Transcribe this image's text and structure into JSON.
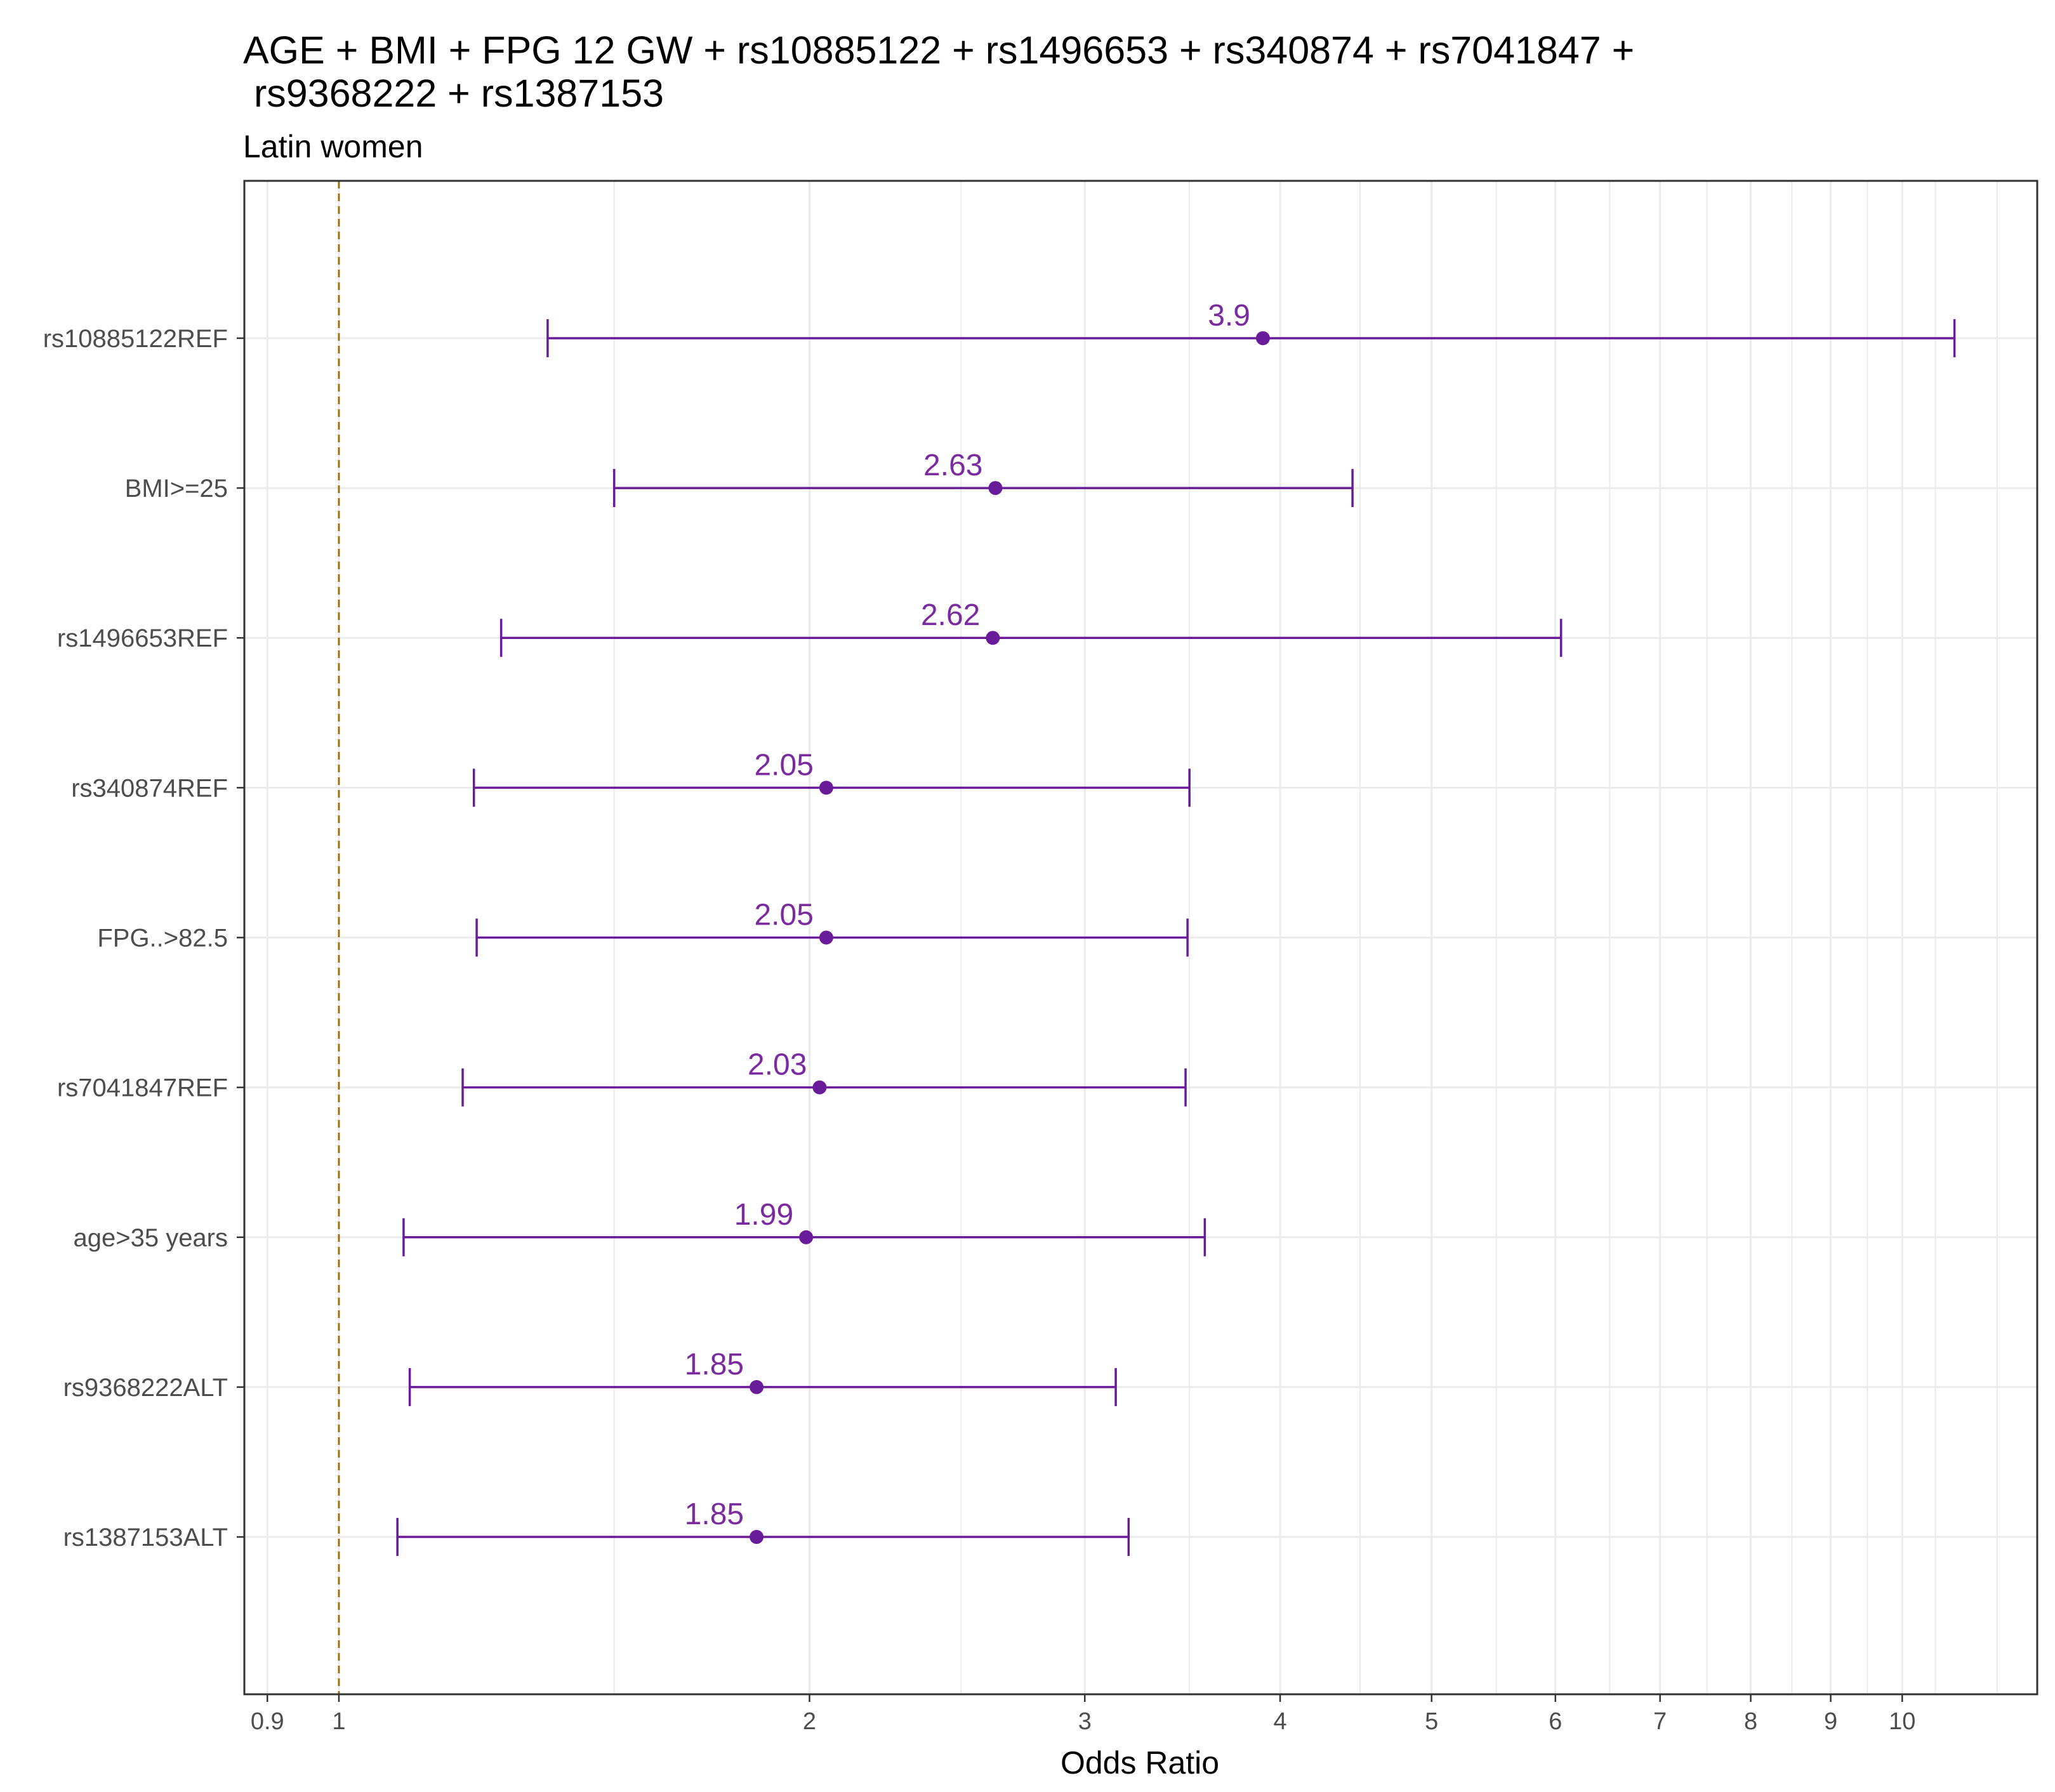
{
  "chart_data": {
    "type": "forest",
    "title_lines": [
      "AGE + BMI + FPG 12 GW + rs10885122 + rs1496653 + rs340874 + rs7041847 +",
      " rs9368222 + rs1387153"
    ],
    "subtitle": "Latin women",
    "xlabel": "Odds Ratio",
    "x_scale": "log",
    "xlim": [
      0.87,
      12.2
    ],
    "reference_line": 1,
    "x_ticks": [
      {
        "value": 0.9,
        "label": "0.9"
      },
      {
        "value": 1,
        "label": "1"
      },
      {
        "value": 2,
        "label": "2"
      },
      {
        "value": 3,
        "label": "3"
      },
      {
        "value": 4,
        "label": "4"
      },
      {
        "value": 5,
        "label": "5"
      },
      {
        "value": 6,
        "label": "6"
      },
      {
        "value": 7,
        "label": "7"
      },
      {
        "value": 8,
        "label": "8"
      },
      {
        "value": 9,
        "label": "9"
      },
      {
        "value": 10,
        "label": "10"
      }
    ],
    "minor_gridlines": [
      1.5,
      2.5,
      3.5,
      4.5,
      5.5,
      6.5,
      7.5,
      8.5,
      9.5,
      10.5,
      11.5
    ],
    "series": [
      {
        "label": "rs10885122REF",
        "or": 3.9,
        "or_label": "3.9",
        "lower": 1.36,
        "upper": 10.8
      },
      {
        "label": "BMI>=25",
        "or": 2.63,
        "or_label": "2.63",
        "lower": 1.5,
        "upper": 4.45
      },
      {
        "label": "rs1496653REF",
        "or": 2.62,
        "or_label": "2.62",
        "lower": 1.27,
        "upper": 6.05
      },
      {
        "label": "rs340874REF",
        "or": 2.05,
        "or_label": "2.05",
        "lower": 1.22,
        "upper": 3.5
      },
      {
        "label": "FPG..>82.5",
        "or": 2.05,
        "or_label": "2.05",
        "lower": 1.225,
        "upper": 3.49
      },
      {
        "label": "rs7041847REF",
        "or": 2.03,
        "or_label": "2.03",
        "lower": 1.2,
        "upper": 3.48
      },
      {
        "label": "age>35 years",
        "or": 1.99,
        "or_label": "1.99",
        "lower": 1.1,
        "upper": 3.58
      },
      {
        "label": "rs9368222ALT",
        "or": 1.85,
        "or_label": "1.85",
        "lower": 1.11,
        "upper": 3.14
      },
      {
        "label": "rs1387153ALT",
        "or": 1.85,
        "or_label": "1.85",
        "lower": 1.09,
        "upper": 3.2
      }
    ],
    "colors": {
      "point": "#6a1b9a",
      "errorbar": "#6a1b9a",
      "label": "#7b2aa0",
      "reference_line": "#a07010",
      "grid": "#ebebeb",
      "panel_border": "#333333"
    }
  }
}
